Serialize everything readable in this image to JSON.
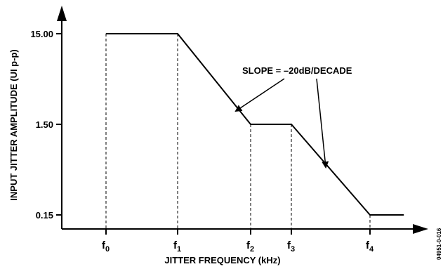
{
  "chart_data": {
    "type": "line",
    "title": "",
    "xlabel": "JITTER FREQUENCY (kHz)",
    "ylabel": "INPUT JITTER AMPLITUDE (UI p-p)",
    "x_ticks": [
      {
        "base": "f",
        "sub": "0"
      },
      {
        "base": "f",
        "sub": "1"
      },
      {
        "base": "f",
        "sub": "2"
      },
      {
        "base": "f",
        "sub": "3"
      },
      {
        "base": "f",
        "sub": "4"
      }
    ],
    "y_ticks": [
      "15.00",
      "1.50",
      "0.15"
    ],
    "y_values": [
      15.0,
      1.5,
      0.15
    ],
    "y_scale": "log",
    "ylim": [
      0.1,
      60
    ],
    "series": [
      {
        "points": [
          {
            "x": "f0",
            "y": 15.0
          },
          {
            "x": "f1",
            "y": 15.0
          },
          {
            "x": "f2",
            "y": 1.5
          },
          {
            "x": "f3",
            "y": 1.5
          },
          {
            "x": "f4",
            "y": 0.15
          },
          {
            "x": "end",
            "y": 0.15
          }
        ]
      }
    ],
    "annotation": "SLOPE = –20dB/DECADE",
    "figure_id": "04951-0-016",
    "grid": false
  }
}
